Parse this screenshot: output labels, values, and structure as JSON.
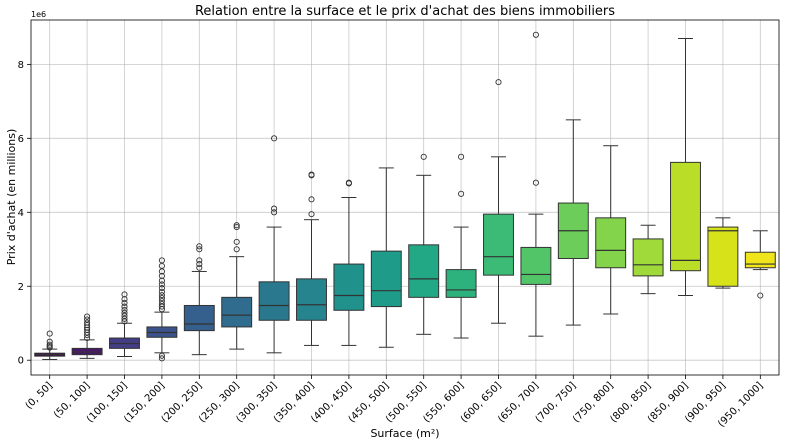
{
  "chart_data": {
    "type": "box",
    "title": "Relation entre la surface et le prix d'achat des biens immobiliers",
    "xlabel": "Surface (m²)",
    "ylabel": "Prix d'achat (en millions)",
    "y_scale_label": "1e6",
    "ylim": [
      -0.4,
      9.2
    ],
    "yticks": [
      0,
      2,
      4,
      6,
      8
    ],
    "grid": true,
    "categories": [
      "(0, 50]",
      "(50, 100]",
      "(100, 150]",
      "(150, 200]",
      "(200, 250]",
      "(250, 300]",
      "(300, 350]",
      "(350, 400]",
      "(400, 450]",
      "(450, 500]",
      "(500, 550]",
      "(550, 600]",
      "(600, 650]",
      "(650, 700]",
      "(700, 750]",
      "(750, 800]",
      "(800, 850]",
      "(850, 900]",
      "(900, 950]",
      "(950, 1000]"
    ],
    "colors": [
      "#440154",
      "#48186a",
      "#433d84",
      "#3b528b",
      "#355f8d",
      "#2f6c8e",
      "#2a788e",
      "#25848e",
      "#21918c",
      "#1e9c89",
      "#22a884",
      "#2db27d",
      "#3bbb75",
      "#52c569",
      "#6ccd5a",
      "#84d44b",
      "#9fda3a",
      "#bade28",
      "#d8e219",
      "#f0e51a"
    ],
    "boxes": [
      {
        "whislo": 0.02,
        "q1": 0.11,
        "med": 0.15,
        "q3": 0.19,
        "whishi": 0.3,
        "fliers": [
          0.34,
          0.38,
          0.42,
          0.5,
          0.72
        ]
      },
      {
        "whislo": 0.05,
        "q1": 0.15,
        "med": 0.22,
        "q3": 0.32,
        "whishi": 0.55,
        "fliers": [
          0.6,
          0.68,
          0.75,
          0.82,
          0.88,
          0.95,
          1.02,
          1.1,
          1.18
        ]
      },
      {
        "whislo": 0.1,
        "q1": 0.32,
        "med": 0.45,
        "q3": 0.6,
        "whishi": 1.0,
        "fliers": [
          1.05,
          1.12,
          1.2,
          1.28,
          1.36,
          1.45,
          1.55,
          1.65,
          1.78
        ]
      },
      {
        "whislo": 0.2,
        "q1": 0.62,
        "med": 0.75,
        "q3": 0.9,
        "whishi": 1.3,
        "fliers": [
          0.05,
          0.12,
          1.38,
          1.45,
          1.52,
          1.6,
          1.68,
          1.76,
          1.85,
          1.95,
          2.05,
          2.15,
          2.28,
          2.4,
          2.55,
          2.7
        ]
      },
      {
        "whislo": 0.15,
        "q1": 0.8,
        "med": 0.98,
        "q3": 1.48,
        "whishi": 2.4,
        "fliers": [
          2.5,
          2.6,
          2.7,
          3.0,
          3.08
        ]
      },
      {
        "whislo": 0.3,
        "q1": 0.9,
        "med": 1.22,
        "q3": 1.7,
        "whishi": 2.8,
        "fliers": [
          3.0,
          3.2,
          3.6,
          3.65
        ]
      },
      {
        "whislo": 0.2,
        "q1": 1.08,
        "med": 1.48,
        "q3": 2.12,
        "whishi": 3.6,
        "fliers": [
          4.0,
          4.1,
          6.0
        ]
      },
      {
        "whislo": 0.4,
        "q1": 1.08,
        "med": 1.5,
        "q3": 2.2,
        "whishi": 3.8,
        "fliers": [
          3.95,
          4.35,
          5.0,
          5.02
        ]
      },
      {
        "whislo": 0.4,
        "q1": 1.35,
        "med": 1.75,
        "q3": 2.6,
        "whishi": 4.4,
        "fliers": [
          4.78,
          4.8
        ]
      },
      {
        "whislo": 0.35,
        "q1": 1.45,
        "med": 1.88,
        "q3": 2.95,
        "whishi": 5.2,
        "fliers": []
      },
      {
        "whislo": 0.7,
        "q1": 1.7,
        "med": 2.2,
        "q3": 3.12,
        "whishi": 5.0,
        "fliers": [
          5.5
        ]
      },
      {
        "whislo": 0.6,
        "q1": 1.7,
        "med": 1.9,
        "q3": 2.45,
        "whishi": 3.6,
        "fliers": [
          4.5,
          5.5
        ]
      },
      {
        "whislo": 1.0,
        "q1": 2.3,
        "med": 2.8,
        "q3": 3.95,
        "whishi": 5.5,
        "fliers": [
          7.52
        ]
      },
      {
        "whislo": 0.65,
        "q1": 2.05,
        "med": 2.32,
        "q3": 3.05,
        "whishi": 3.95,
        "fliers": [
          4.8,
          8.8
        ]
      },
      {
        "whislo": 0.95,
        "q1": 2.75,
        "med": 3.5,
        "q3": 4.25,
        "whishi": 6.5,
        "fliers": []
      },
      {
        "whislo": 1.25,
        "q1": 2.5,
        "med": 2.97,
        "q3": 3.85,
        "whishi": 5.8,
        "fliers": []
      },
      {
        "whislo": 1.8,
        "q1": 2.28,
        "med": 2.58,
        "q3": 3.28,
        "whishi": 3.65,
        "fliers": []
      },
      {
        "whislo": 1.75,
        "q1": 2.42,
        "med": 2.7,
        "q3": 5.35,
        "whishi": 8.7,
        "fliers": []
      },
      {
        "whislo": 1.95,
        "q1": 2.0,
        "med": 3.5,
        "q3": 3.6,
        "whishi": 3.85,
        "fliers": []
      },
      {
        "whislo": 2.45,
        "q1": 2.5,
        "med": 2.6,
        "q3": 2.92,
        "whishi": 3.5,
        "fliers": [
          1.75
        ]
      }
    ]
  }
}
